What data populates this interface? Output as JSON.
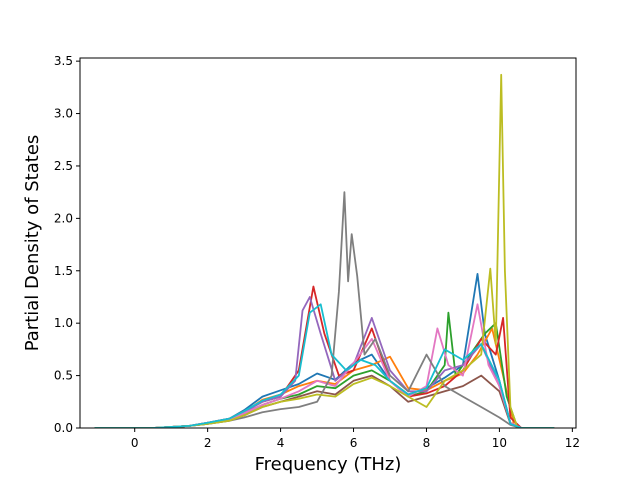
{
  "chart_data": {
    "type": "line",
    "title": "",
    "xlabel": "Frequency (THz)",
    "ylabel": "Partial Density of States",
    "xlim": [
      -1.5,
      12.1
    ],
    "ylim": [
      0,
      3.53
    ],
    "xticks": [
      0,
      2,
      4,
      6,
      8,
      10,
      12
    ],
    "yticks": [
      0.0,
      0.5,
      1.0,
      1.5,
      2.0,
      2.5,
      3.0,
      3.5
    ],
    "xtick_labels": [
      "0",
      "2",
      "4",
      "6",
      "8",
      "10",
      "12"
    ],
    "ytick_labels": [
      "0.0",
      "0.5",
      "1.0",
      "1.5",
      "2.0",
      "2.5",
      "3.0",
      "3.5"
    ],
    "grid": false,
    "legend": "none",
    "series": [
      {
        "color": "#1f77b4",
        "points": [
          [
            -1.1,
            0
          ],
          [
            0.5,
            0
          ],
          [
            1.5,
            0.02
          ],
          [
            2,
            0.05
          ],
          [
            2.6,
            0.09
          ],
          [
            3,
            0.17
          ],
          [
            3.5,
            0.3
          ],
          [
            4,
            0.36
          ],
          [
            4.5,
            0.42
          ],
          [
            5,
            0.52
          ],
          [
            5.5,
            0.46
          ],
          [
            6,
            0.62
          ],
          [
            6.5,
            0.7
          ],
          [
            7,
            0.45
          ],
          [
            7.5,
            0.32
          ],
          [
            8,
            0.38
          ],
          [
            8.5,
            0.48
          ],
          [
            9,
            0.6
          ],
          [
            9.4,
            1.47
          ],
          [
            9.6,
            0.9
          ],
          [
            10,
            0.45
          ],
          [
            10.3,
            0.05
          ],
          [
            10.6,
            0
          ],
          [
            11.5,
            0
          ]
        ]
      },
      {
        "color": "#ff7f0e",
        "points": [
          [
            -1.1,
            0
          ],
          [
            0.5,
            0
          ],
          [
            1.5,
            0.02
          ],
          [
            2,
            0.05
          ],
          [
            2.6,
            0.08
          ],
          [
            3,
            0.15
          ],
          [
            3.5,
            0.27
          ],
          [
            4,
            0.32
          ],
          [
            4.5,
            0.4
          ],
          [
            5,
            0.45
          ],
          [
            5.5,
            0.42
          ],
          [
            6,
            0.55
          ],
          [
            6.5,
            0.6
          ],
          [
            7,
            0.68
          ],
          [
            7.5,
            0.38
          ],
          [
            8,
            0.36
          ],
          [
            8.5,
            0.45
          ],
          [
            9,
            0.52
          ],
          [
            9.4,
            0.7
          ],
          [
            9.8,
            0.95
          ],
          [
            10.1,
            0.5
          ],
          [
            10.4,
            0.03
          ],
          [
            10.6,
            0
          ],
          [
            11.5,
            0
          ]
        ]
      },
      {
        "color": "#2ca02c",
        "points": [
          [
            -1.1,
            0
          ],
          [
            0.5,
            0
          ],
          [
            1.5,
            0.02
          ],
          [
            2,
            0.04
          ],
          [
            2.6,
            0.08
          ],
          [
            3,
            0.14
          ],
          [
            3.5,
            0.22
          ],
          [
            4,
            0.28
          ],
          [
            4.5,
            0.32
          ],
          [
            5,
            0.4
          ],
          [
            5.5,
            0.38
          ],
          [
            6,
            0.5
          ],
          [
            6.5,
            0.55
          ],
          [
            7,
            0.45
          ],
          [
            7.5,
            0.3
          ],
          [
            8,
            0.35
          ],
          [
            8.5,
            0.6
          ],
          [
            8.6,
            1.1
          ],
          [
            8.8,
            0.5
          ],
          [
            9.2,
            0.7
          ],
          [
            9.6,
            0.9
          ],
          [
            9.9,
            1.0
          ],
          [
            10.2,
            0.3
          ],
          [
            10.5,
            0
          ],
          [
            11.5,
            0
          ]
        ]
      },
      {
        "color": "#d62728",
        "points": [
          [
            -1.1,
            0
          ],
          [
            0.5,
            0
          ],
          [
            1.5,
            0.02
          ],
          [
            2,
            0.05
          ],
          [
            2.6,
            0.09
          ],
          [
            3,
            0.16
          ],
          [
            3.5,
            0.25
          ],
          [
            4,
            0.3
          ],
          [
            4.5,
            0.55
          ],
          [
            4.9,
            1.35
          ],
          [
            5.2,
            0.9
          ],
          [
            5.6,
            0.5
          ],
          [
            6,
            0.55
          ],
          [
            6.5,
            0.95
          ],
          [
            7,
            0.45
          ],
          [
            7.5,
            0.3
          ],
          [
            8,
            0.33
          ],
          [
            8.5,
            0.4
          ],
          [
            9,
            0.55
          ],
          [
            9.5,
            0.85
          ],
          [
            9.9,
            0.7
          ],
          [
            10.1,
            1.05
          ],
          [
            10.3,
            0.1
          ],
          [
            10.6,
            0
          ],
          [
            11.5,
            0
          ]
        ]
      },
      {
        "color": "#9467bd",
        "points": [
          [
            -1.1,
            0
          ],
          [
            0.5,
            0
          ],
          [
            1.5,
            0.02
          ],
          [
            2,
            0.05
          ],
          [
            2.6,
            0.09
          ],
          [
            3,
            0.15
          ],
          [
            3.5,
            0.25
          ],
          [
            4,
            0.3
          ],
          [
            4.4,
            0.45
          ],
          [
            4.6,
            1.12
          ],
          [
            4.8,
            1.25
          ],
          [
            5.1,
            0.9
          ],
          [
            5.5,
            0.45
          ],
          [
            6,
            0.6
          ],
          [
            6.5,
            1.05
          ],
          [
            7,
            0.55
          ],
          [
            7.5,
            0.35
          ],
          [
            8,
            0.35
          ],
          [
            8.5,
            0.55
          ],
          [
            9,
            0.6
          ],
          [
            9.5,
            0.8
          ],
          [
            10,
            0.4
          ],
          [
            10.3,
            0.05
          ],
          [
            10.6,
            0
          ],
          [
            11.5,
            0
          ]
        ]
      },
      {
        "color": "#8c564b",
        "points": [
          [
            -1.1,
            0
          ],
          [
            0.5,
            0
          ],
          [
            1.5,
            0.02
          ],
          [
            2,
            0.04
          ],
          [
            2.6,
            0.07
          ],
          [
            3,
            0.12
          ],
          [
            3.5,
            0.2
          ],
          [
            4,
            0.25
          ],
          [
            4.5,
            0.3
          ],
          [
            5,
            0.35
          ],
          [
            5.5,
            0.32
          ],
          [
            6,
            0.45
          ],
          [
            6.5,
            0.5
          ],
          [
            7,
            0.4
          ],
          [
            7.5,
            0.25
          ],
          [
            8,
            0.3
          ],
          [
            8.5,
            0.35
          ],
          [
            9,
            0.4
          ],
          [
            9.5,
            0.5
          ],
          [
            10,
            0.35
          ],
          [
            10.3,
            0.04
          ],
          [
            10.6,
            0
          ],
          [
            11.5,
            0
          ]
        ]
      },
      {
        "color": "#e377c2",
        "points": [
          [
            -1.1,
            0
          ],
          [
            0.5,
            0
          ],
          [
            1.5,
            0.02
          ],
          [
            2,
            0.05
          ],
          [
            2.6,
            0.08
          ],
          [
            3,
            0.14
          ],
          [
            3.5,
            0.22
          ],
          [
            4,
            0.28
          ],
          [
            4.5,
            0.35
          ],
          [
            5,
            0.45
          ],
          [
            5.5,
            0.4
          ],
          [
            6,
            0.62
          ],
          [
            6.5,
            0.85
          ],
          [
            7,
            0.45
          ],
          [
            7.5,
            0.3
          ],
          [
            8,
            0.4
          ],
          [
            8.3,
            0.95
          ],
          [
            8.6,
            0.6
          ],
          [
            9,
            0.5
          ],
          [
            9.4,
            1.18
          ],
          [
            9.7,
            0.6
          ],
          [
            10,
            0.4
          ],
          [
            10.3,
            0.05
          ],
          [
            10.6,
            0
          ],
          [
            11.5,
            0
          ]
        ]
      },
      {
        "color": "#7f7f7f",
        "points": [
          [
            -1.1,
            0
          ],
          [
            0.5,
            0
          ],
          [
            1.5,
            0.02
          ],
          [
            2,
            0.04
          ],
          [
            2.6,
            0.07
          ],
          [
            3,
            0.1
          ],
          [
            3.5,
            0.15
          ],
          [
            4,
            0.18
          ],
          [
            4.5,
            0.2
          ],
          [
            5,
            0.25
          ],
          [
            5.4,
            0.5
          ],
          [
            5.6,
            1.3
          ],
          [
            5.75,
            2.25
          ],
          [
            5.85,
            1.4
          ],
          [
            5.95,
            1.85
          ],
          [
            6.1,
            1.45
          ],
          [
            6.3,
            0.7
          ],
          [
            6.6,
            0.85
          ],
          [
            7,
            0.5
          ],
          [
            7.5,
            0.35
          ],
          [
            8,
            0.7
          ],
          [
            8.5,
            0.4
          ],
          [
            9,
            0.3
          ],
          [
            9.5,
            0.2
          ],
          [
            10,
            0.1
          ],
          [
            10.3,
            0.03
          ],
          [
            10.6,
            0
          ],
          [
            11.5,
            0
          ]
        ]
      },
      {
        "color": "#bcbd22",
        "points": [
          [
            -1.1,
            0
          ],
          [
            0.5,
            0
          ],
          [
            1.5,
            0.02
          ],
          [
            2,
            0.04
          ],
          [
            2.6,
            0.07
          ],
          [
            3,
            0.12
          ],
          [
            3.5,
            0.2
          ],
          [
            4,
            0.25
          ],
          [
            4.5,
            0.28
          ],
          [
            5,
            0.32
          ],
          [
            5.5,
            0.3
          ],
          [
            6,
            0.42
          ],
          [
            6.5,
            0.48
          ],
          [
            7,
            0.4
          ],
          [
            7.5,
            0.3
          ],
          [
            8,
            0.2
          ],
          [
            8.5,
            0.45
          ],
          [
            9,
            0.55
          ],
          [
            9.5,
            0.7
          ],
          [
            9.75,
            1.52
          ],
          [
            9.9,
            0.8
          ],
          [
            10.05,
            3.37
          ],
          [
            10.15,
            1.5
          ],
          [
            10.3,
            0.2
          ],
          [
            10.5,
            0
          ],
          [
            11.5,
            0
          ]
        ]
      },
      {
        "color": "#17becf",
        "points": [
          [
            -1.1,
            0
          ],
          [
            0.5,
            0
          ],
          [
            1.5,
            0.02
          ],
          [
            2,
            0.05
          ],
          [
            2.6,
            0.09
          ],
          [
            3,
            0.16
          ],
          [
            3.5,
            0.26
          ],
          [
            4,
            0.32
          ],
          [
            4.5,
            0.5
          ],
          [
            4.8,
            1.1
          ],
          [
            5.1,
            1.18
          ],
          [
            5.4,
            0.7
          ],
          [
            5.8,
            0.55
          ],
          [
            6.2,
            0.65
          ],
          [
            6.6,
            0.6
          ],
          [
            7,
            0.45
          ],
          [
            7.5,
            0.32
          ],
          [
            8,
            0.38
          ],
          [
            8.5,
            0.75
          ],
          [
            9,
            0.65
          ],
          [
            9.5,
            0.8
          ],
          [
            10,
            0.45
          ],
          [
            10.3,
            0.04
          ],
          [
            10.6,
            0
          ],
          [
            11.5,
            0
          ]
        ]
      }
    ]
  }
}
